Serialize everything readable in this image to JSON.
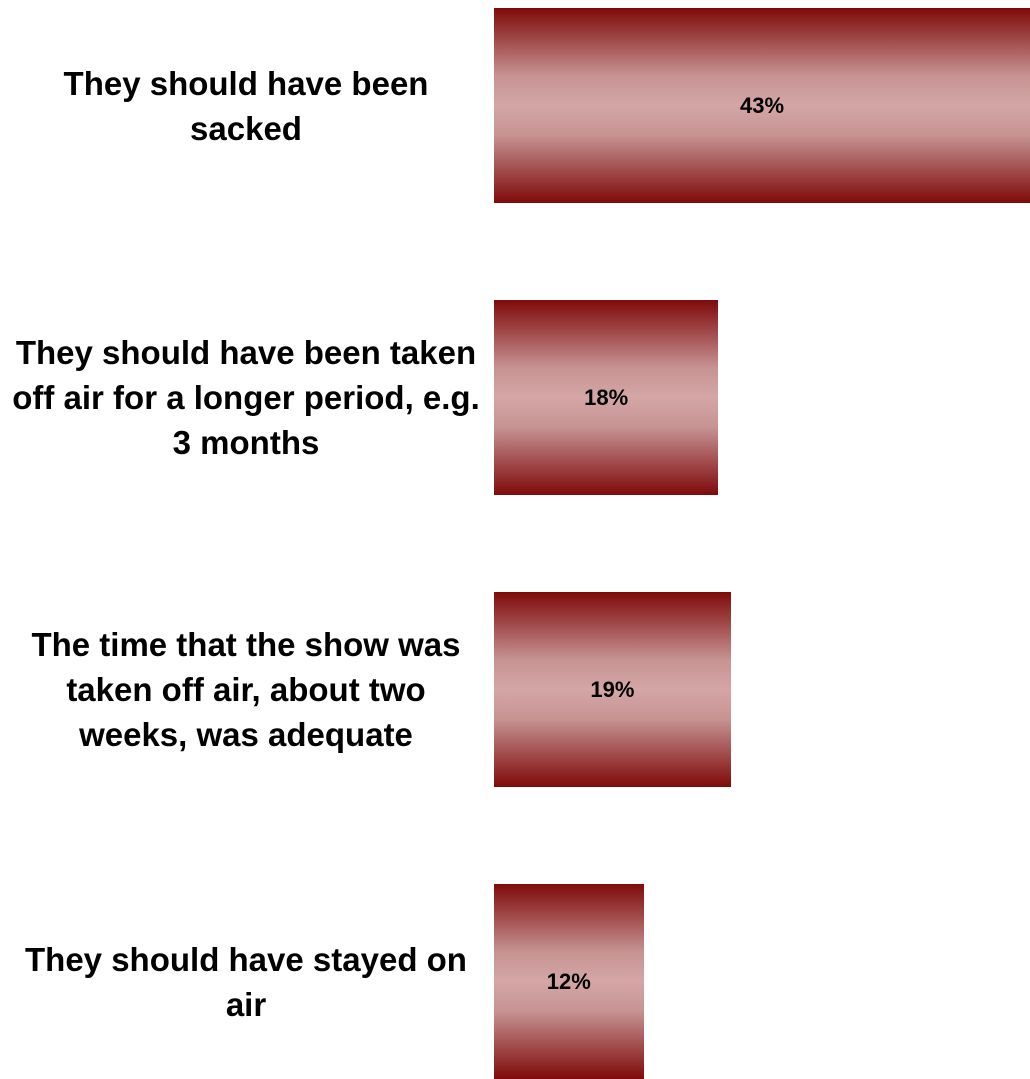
{
  "chart_data": {
    "type": "bar",
    "orientation": "horizontal",
    "categories": [
      "They should have been sacked",
      "They should have been taken off air for a longer period, e.g. 3 months",
      "The time that the show was taken off air, about two weeks, was adequate",
      "They should have stayed on air"
    ],
    "values": [
      43,
      18,
      19,
      12
    ],
    "value_labels": [
      "43%",
      "18%",
      "19%",
      "12%"
    ],
    "color": "#7f0a0a"
  }
}
